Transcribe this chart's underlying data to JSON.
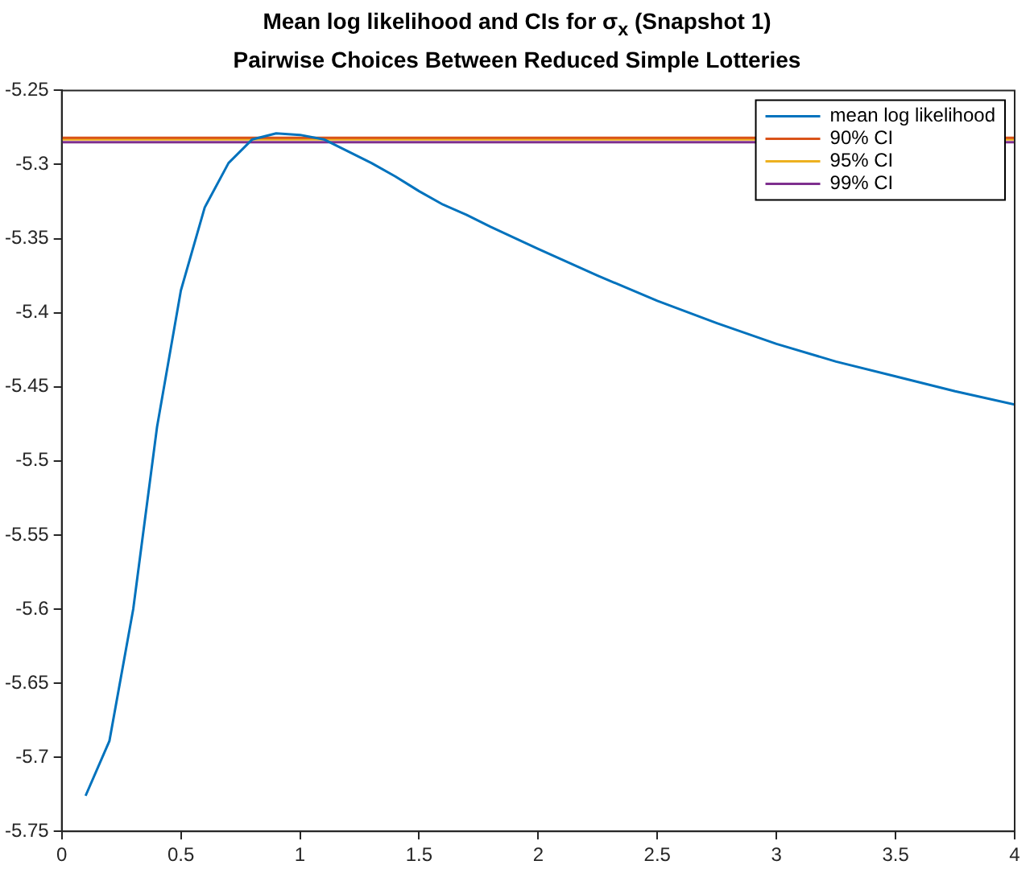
{
  "chart_data": {
    "type": "line",
    "title": "Mean log likelihood and CIs for σ$_{x}$ (Snapshot 1)",
    "subtitle": "Pairwise Choices Between Reduced Simple Lotteries",
    "series": [
      {
        "name": "mean log likelihood",
        "color": "#0072bd",
        "x": [
          0.1,
          0.2,
          0.3,
          0.4,
          0.5,
          0.6,
          0.7,
          0.8,
          0.9,
          1.0,
          1.1,
          1.2,
          1.3,
          1.4,
          1.5,
          1.6,
          1.7,
          1.8,
          2.0,
          2.25,
          2.5,
          2.75,
          3.0,
          3.25,
          3.5,
          3.75,
          4.0
        ],
        "values": [
          -5.726,
          -5.689,
          -5.6,
          -5.477,
          -5.385,
          -5.329,
          -5.299,
          -5.283,
          -5.279,
          -5.28,
          -5.283,
          -5.291,
          -5.299,
          -5.308,
          -5.318,
          -5.327,
          -5.334,
          -5.342,
          -5.357,
          -5.375,
          -5.392,
          -5.407,
          -5.421,
          -5.433,
          -5.443,
          -5.453,
          -5.462
        ]
      },
      {
        "name": "90% CI",
        "color": "#d95319",
        "x": [
          0,
          4
        ],
        "values": [
          -5.282,
          -5.282
        ]
      },
      {
        "name": "95% CI",
        "color": "#edb120",
        "x": [
          0,
          4
        ],
        "values": [
          -5.283,
          -5.283
        ]
      },
      {
        "name": "99% CI",
        "color": "#7e2f8e",
        "x": [
          0,
          4
        ],
        "values": [
          -5.285,
          -5.285
        ]
      }
    ],
    "xlim": [
      0,
      4
    ],
    "xticks": [
      0,
      0.5,
      1,
      1.5,
      2,
      2.5,
      3,
      3.5,
      4
    ],
    "ylim": [
      -5.75,
      -5.25
    ],
    "yticks": [
      -5.75,
      -5.7,
      -5.65,
      -5.6,
      -5.55,
      -5.5,
      -5.45,
      -5.4,
      -5.35,
      -5.3,
      -5.25
    ],
    "grid": false,
    "legend": "top right",
    "marker": "none",
    "line_style": "solid"
  }
}
